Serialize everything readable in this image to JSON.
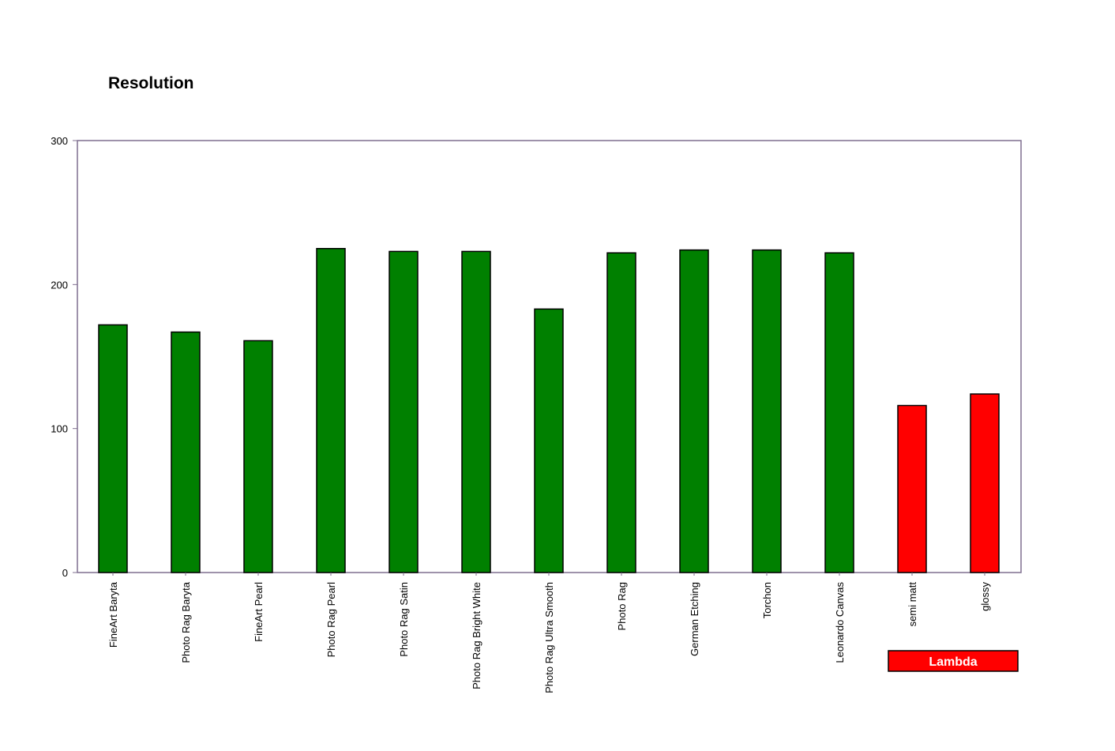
{
  "chart_data": {
    "type": "bar",
    "title": "Resolution",
    "xlabel": "",
    "ylabel": "",
    "ylim": [
      0,
      300
    ],
    "yticks": [
      0,
      100,
      200,
      300
    ],
    "grid": false,
    "categories": [
      "FineArt Baryta",
      "Photo Rag Baryta",
      "FineArt Pearl",
      "Photo Rag Pearl",
      "Photo Rag Satin",
      "Photo Rag Bright White",
      "Photo Rag Ultra Smooth",
      "Photo Rag",
      "German Etching",
      "Torchon",
      "Leonardo Canvas",
      "semi matt",
      "glossy"
    ],
    "values": [
      172,
      167,
      161,
      225,
      223,
      223,
      183,
      222,
      224,
      224,
      222,
      116,
      124
    ],
    "bar_colors": [
      "#008000",
      "#008000",
      "#008000",
      "#008000",
      "#008000",
      "#008000",
      "#008000",
      "#008000",
      "#008000",
      "#008000",
      "#008000",
      "#ff0000",
      "#ff0000"
    ],
    "group_annotation": {
      "label": "Lambda",
      "categories": [
        "semi matt",
        "glossy"
      ],
      "color": "#ff0000"
    },
    "frame_color": "#7f6f8f"
  }
}
